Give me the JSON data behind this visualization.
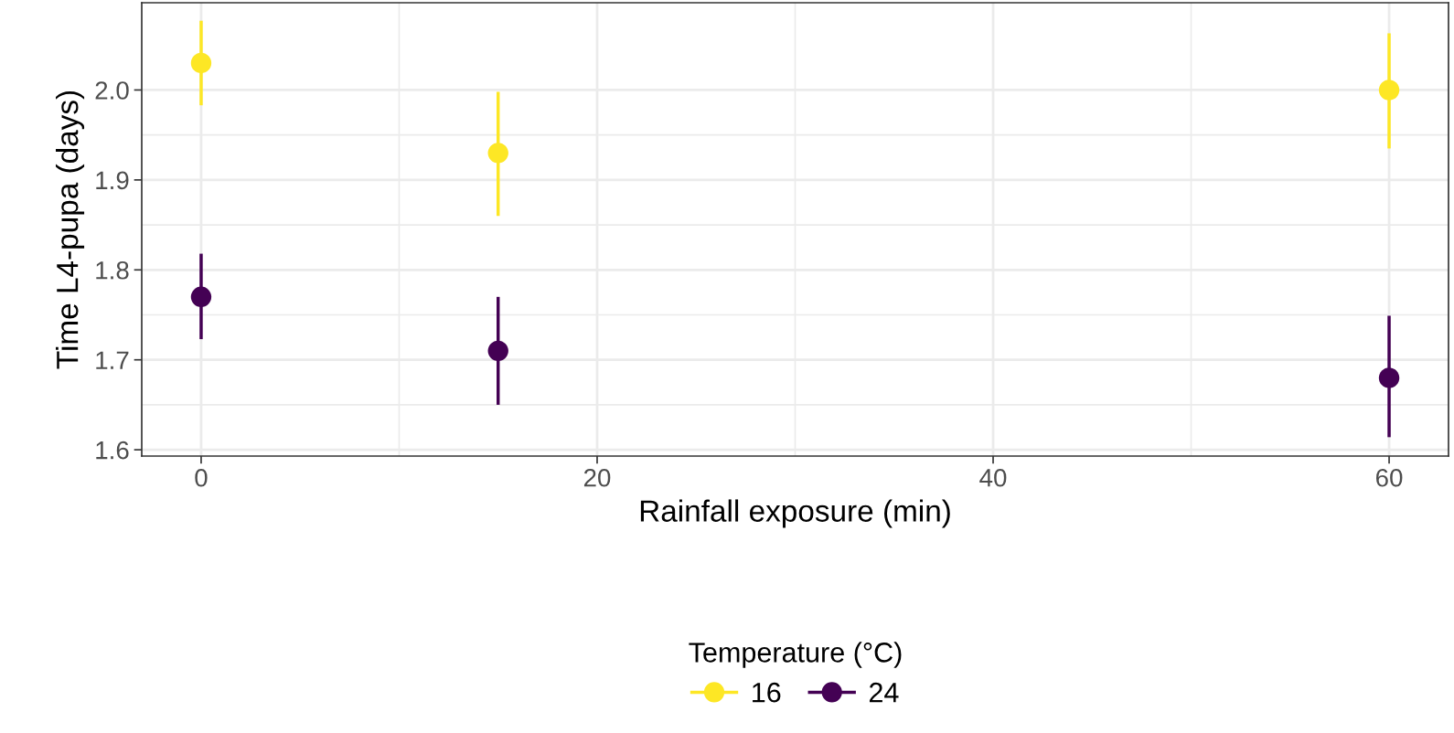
{
  "chart_data": {
    "type": "scatter",
    "xlabel": "Rainfall exposure (min)",
    "ylabel": "Time L4-pupa (days)",
    "legend_title": "Temperature (°C)",
    "x": [
      0,
      15,
      60
    ],
    "series": [
      {
        "name": "16",
        "color": "#fde725",
        "values": [
          2.03,
          1.93,
          2.0
        ],
        "errors": [
          [
            1.983,
            2.077
          ],
          [
            1.86,
            1.998
          ],
          [
            1.935,
            2.063
          ]
        ]
      },
      {
        "name": "24",
        "color": "#440154",
        "values": [
          1.77,
          1.71,
          1.68
        ],
        "errors": [
          [
            1.723,
            1.818
          ],
          [
            1.65,
            1.77
          ],
          [
            1.614,
            1.749
          ]
        ]
      }
    ],
    "xlim": [
      -3,
      63
    ],
    "xticks": [
      0,
      20,
      40,
      60
    ],
    "ylim": [
      1.593,
      2.097
    ],
    "yticks": [
      {
        "value": 1.6,
        "label": "1.6"
      },
      {
        "value": 1.7,
        "label": "1.7"
      },
      {
        "value": 1.8,
        "label": "1.8"
      },
      {
        "value": 1.9,
        "label": "1.9"
      },
      {
        "value": 2.0,
        "label": "2.0"
      }
    ],
    "grid": true,
    "legend": "bottom",
    "marker": "circle"
  }
}
